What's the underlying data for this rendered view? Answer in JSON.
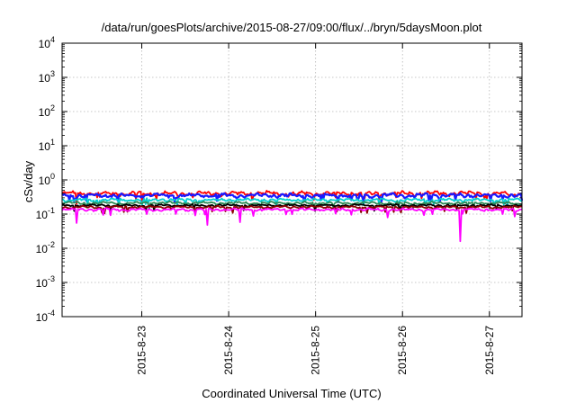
{
  "chart_data": {
    "type": "line",
    "title": "/data/run/goesPlots/archive/2015-08-27/09:00/flux/../bryn/5daysMoon.plot",
    "xlabel": "Coordinated Universal Time (UTC)",
    "ylabel": "cSv/day",
    "y_scale": "log",
    "ylim": [
      0.0001,
      10000
    ],
    "xlim": [
      "2015-08-22T02:00",
      "2015-08-27T09:00"
    ],
    "grid": true,
    "legend": "none",
    "y_ticks": [
      {
        "base": "10",
        "exp": "-4"
      },
      {
        "base": "10",
        "exp": "-3"
      },
      {
        "base": "10",
        "exp": "-2"
      },
      {
        "base": "10",
        "exp": "-1"
      },
      {
        "base": "10",
        "exp": "0"
      },
      {
        "base": "10",
        "exp": "1"
      },
      {
        "base": "10",
        "exp": "2"
      },
      {
        "base": "10",
        "exp": "3"
      },
      {
        "base": "10",
        "exp": "4"
      }
    ],
    "x_ticks": [
      {
        "label": "2015-8-23",
        "time": "2015-08-23T00:00"
      },
      {
        "label": "2015-8-24",
        "time": "2015-08-24T00:00"
      },
      {
        "label": "2015-8-25",
        "time": "2015-08-25T00:00"
      },
      {
        "label": "2015-8-26",
        "time": "2015-08-26T00:00"
      },
      {
        "label": "2015-8-27",
        "time": "2015-08-27T00:00"
      }
    ],
    "series": [
      {
        "color": "#ff0000",
        "base": 0.4,
        "noise": 0.18,
        "dips": [
          {
            "time": "2015-08-22T06:00",
            "value": 0.2
          },
          {
            "time": "2015-08-23T00:00",
            "value": 0.22
          }
        ]
      },
      {
        "color": "#1a1aff",
        "base": 0.35,
        "noise": 0.16,
        "dips": []
      },
      {
        "color": "#00ced1",
        "base": 0.26,
        "noise": 0.12,
        "dips": []
      },
      {
        "color": "#2e8b57",
        "base": 0.21,
        "noise": 0.1,
        "dips": []
      },
      {
        "color": "#000000",
        "base": 0.18,
        "noise": 0.09,
        "dips": []
      },
      {
        "color": "#8b0000",
        "base": 0.16,
        "noise": 0.09,
        "dips": []
      },
      {
        "color": "#ff00ff",
        "base": 0.135,
        "noise": 0.1,
        "dips": [
          {
            "time": "2015-08-22T06:00",
            "value": 0.055
          },
          {
            "time": "2015-08-23T18:00",
            "value": 0.048
          },
          {
            "time": "2015-08-24T03:00",
            "value": 0.058
          },
          {
            "time": "2015-08-25T20:00",
            "value": 0.08
          },
          {
            "time": "2015-08-26T16:00",
            "value": 0.016
          },
          {
            "time": "2015-08-27T07:00",
            "value": 0.085
          }
        ]
      }
    ]
  }
}
